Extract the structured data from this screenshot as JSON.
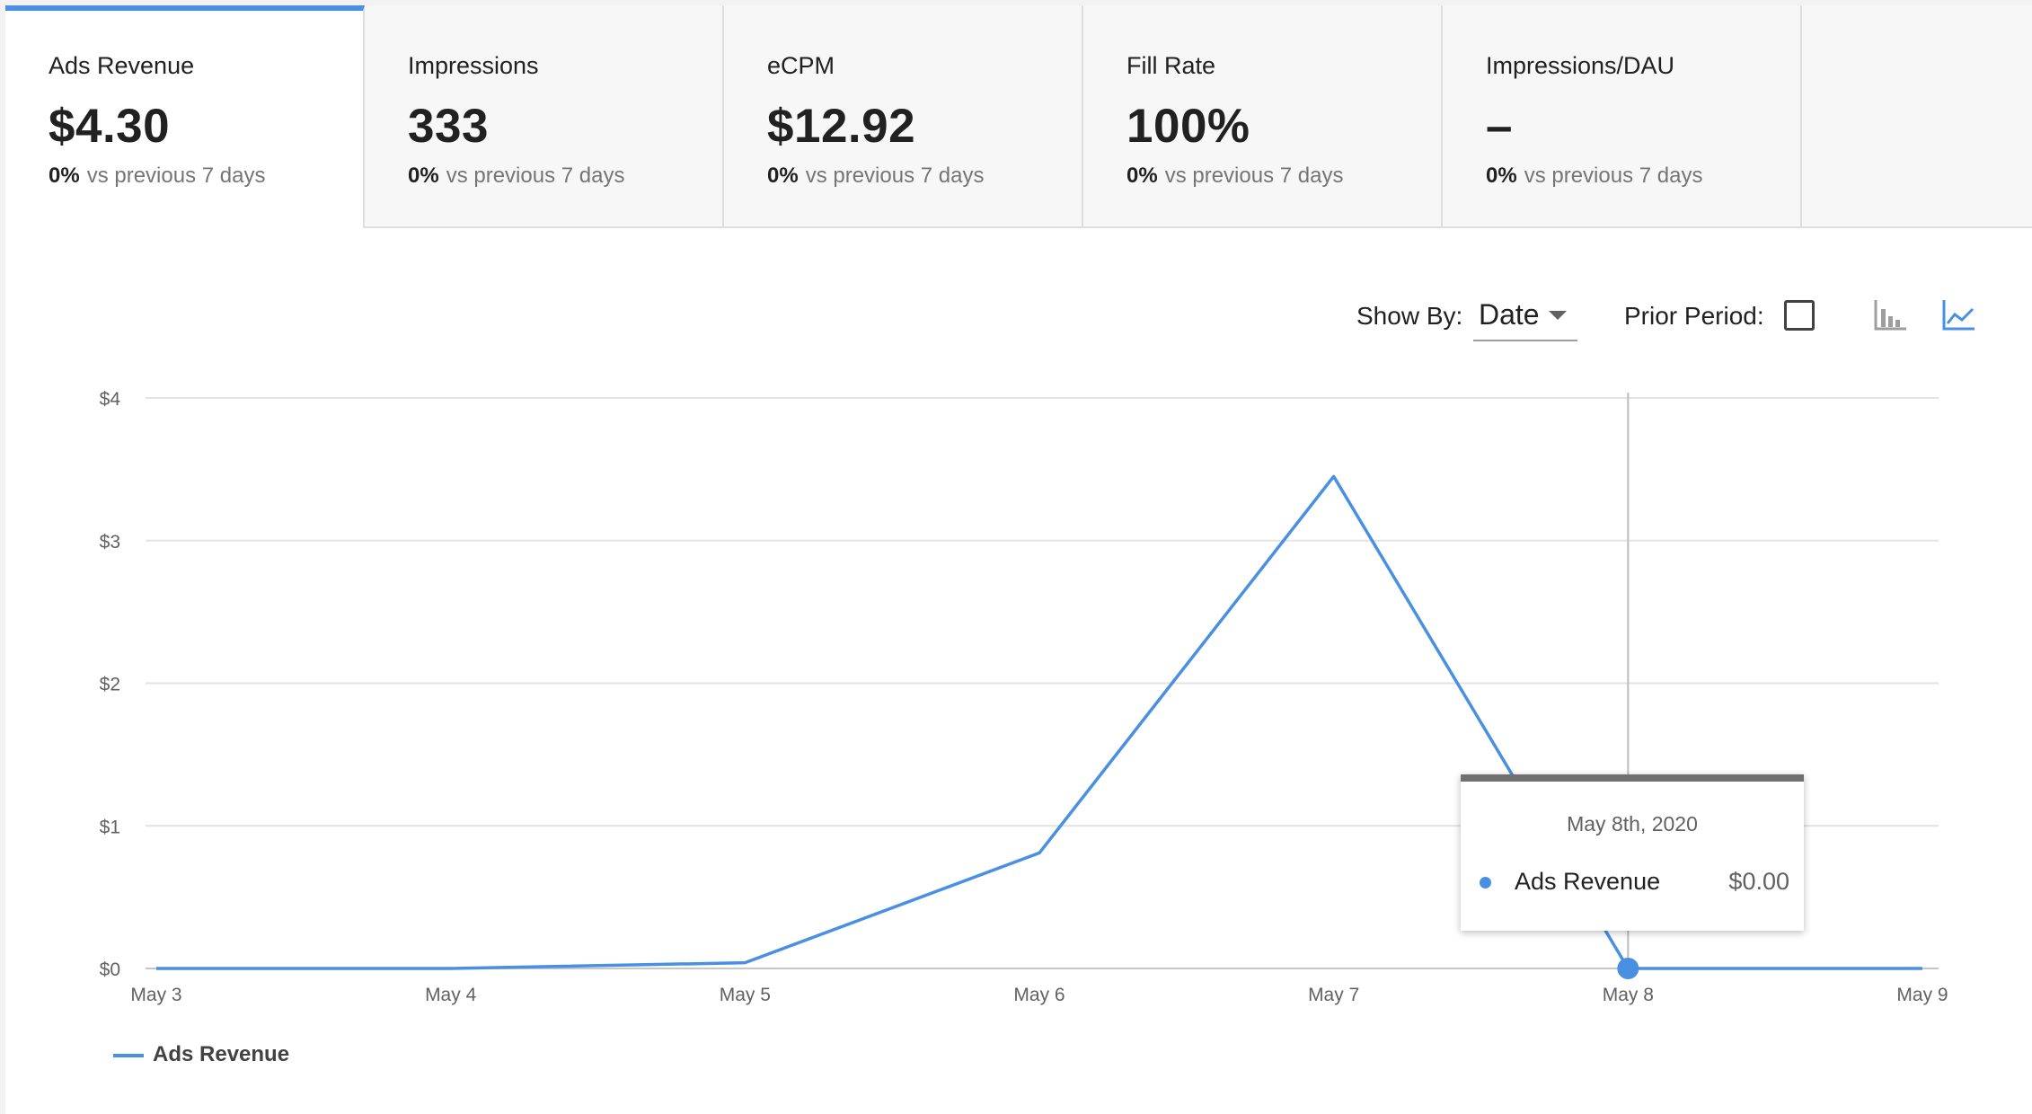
{
  "metrics": [
    {
      "label": "Ads Revenue",
      "value": "$4.30",
      "delta": "0%",
      "delta_text": "vs previous 7 days",
      "active": true
    },
    {
      "label": "Impressions",
      "value": "333",
      "delta": "0%",
      "delta_text": "vs previous 7 days",
      "active": false
    },
    {
      "label": "eCPM",
      "value": "$12.92",
      "delta": "0%",
      "delta_text": "vs previous 7 days",
      "active": false
    },
    {
      "label": "Fill Rate",
      "value": "100%",
      "delta": "0%",
      "delta_text": "vs previous 7 days",
      "active": false
    },
    {
      "label": "Impressions/DAU",
      "value": "–",
      "delta": "0%",
      "delta_text": "vs previous 7 days",
      "active": false
    }
  ],
  "controls": {
    "show_by_label": "Show By:",
    "show_by_value": "Date",
    "prior_period_label": "Prior Period:",
    "prior_period_checked": false,
    "chart_type_icons": [
      "bar-chart-icon",
      "line-chart-icon"
    ],
    "active_chart_type": "line"
  },
  "colors": {
    "accent": "#4a90e2",
    "grid": "#e0e0e0",
    "tooltip_header": "#707070"
  },
  "chart_data": {
    "type": "line",
    "categories": [
      "May 3",
      "May 4",
      "May 5",
      "May 6",
      "May 7",
      "May 8",
      "May 9"
    ],
    "series": [
      {
        "name": "Ads Revenue",
        "values": [
          0.0,
          0.0,
          0.04,
          0.81,
          3.45,
          0.0,
          0.0
        ]
      }
    ],
    "y_ticks": [
      "$0",
      "$1",
      "$2",
      "$3",
      "$4"
    ],
    "ylim": [
      0,
      4
    ],
    "grid": true,
    "legend": "bottom-left",
    "hover_index": 5,
    "tooltip": {
      "title": "May 8th, 2020",
      "series": "Ads Revenue",
      "value": "$0.00"
    }
  }
}
